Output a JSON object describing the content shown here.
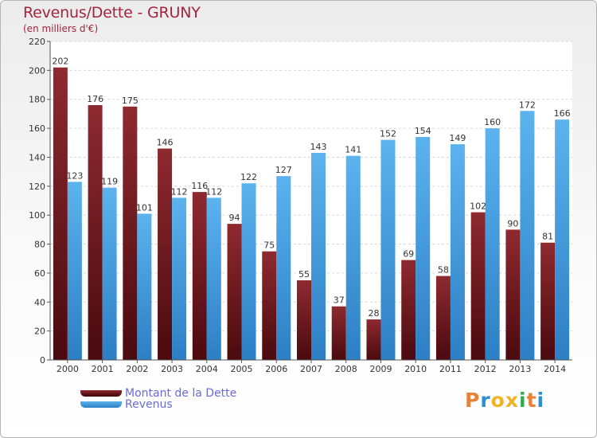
{
  "header": {
    "title": "Revenus/Dette - GRUNY",
    "subtitle": "(en milliers d'€)"
  },
  "legend": {
    "debt_label": "Montant de la Dette",
    "revenue_label": "Revenus"
  },
  "brand": {
    "logo_text": "Proxiti",
    "logo_colors": [
      "#e8813a",
      "#2a8fd6",
      "#f0b426",
      "#f0b426",
      "#34a853",
      "#e8813a",
      "#2a8fd6"
    ]
  },
  "colors": {
    "debt": "#7a1d22",
    "revenue": "#4da6e6",
    "title": "#a3243f"
  },
  "chart_data": {
    "type": "bar",
    "title": "Revenus/Dette - GRUNY",
    "ylabel": "(en milliers d'€)",
    "xlabel": "",
    "ylim": [
      0,
      220
    ],
    "yticks": [
      0,
      20,
      40,
      60,
      80,
      100,
      120,
      140,
      160,
      180,
      200,
      220
    ],
    "grid": true,
    "legend_position": "bottom-left",
    "categories": [
      "2000",
      "2001",
      "2002",
      "2003",
      "2004",
      "2005",
      "2006",
      "2007",
      "2008",
      "2009",
      "2010",
      "2011",
      "2012",
      "2013",
      "2014"
    ],
    "series": [
      {
        "name": "Montant de la Dette",
        "values": [
          202,
          176,
          175,
          146,
          116,
          94,
          75,
          55,
          37,
          28,
          69,
          58,
          102,
          90,
          81
        ]
      },
      {
        "name": "Revenus",
        "values": [
          123,
          119,
          101,
          112,
          112,
          122,
          127,
          143,
          141,
          152,
          154,
          149,
          160,
          172,
          166
        ]
      }
    ]
  }
}
